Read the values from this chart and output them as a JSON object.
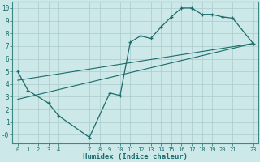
{
  "title": "",
  "xlabel": "Humidex (Indice chaleur)",
  "background_color": "#cce8e8",
  "grid_color": "#aacccc",
  "line_color": "#1a6b6b",
  "xlim": [
    -0.5,
    23.5
  ],
  "ylim": [
    -0.7,
    10.5
  ],
  "xticks": [
    0,
    1,
    2,
    3,
    4,
    7,
    8,
    9,
    10,
    11,
    12,
    13,
    14,
    15,
    16,
    17,
    18,
    19,
    20,
    21,
    23
  ],
  "yticks": [
    0,
    1,
    2,
    3,
    4,
    5,
    6,
    7,
    8,
    9,
    10
  ],
  "ytick_labels": [
    "-0",
    "1",
    "2",
    "3",
    "4",
    "5",
    "6",
    "7",
    "8",
    "9",
    "10"
  ],
  "line1_x": [
    0,
    1,
    3,
    4,
    7,
    9,
    10,
    11,
    12,
    13,
    14,
    15,
    16,
    17,
    18,
    19,
    20,
    21,
    23
  ],
  "line1_y": [
    5.0,
    3.5,
    2.5,
    1.5,
    -0.2,
    3.3,
    3.1,
    7.3,
    7.8,
    7.6,
    8.5,
    9.3,
    10.0,
    10.0,
    9.5,
    9.5,
    9.3,
    9.2,
    7.2
  ],
  "line2_x": [
    0,
    23
  ],
  "line2_y": [
    2.8,
    7.2
  ],
  "line3_x": [
    0,
    23
  ],
  "line3_y": [
    4.3,
    7.2
  ]
}
